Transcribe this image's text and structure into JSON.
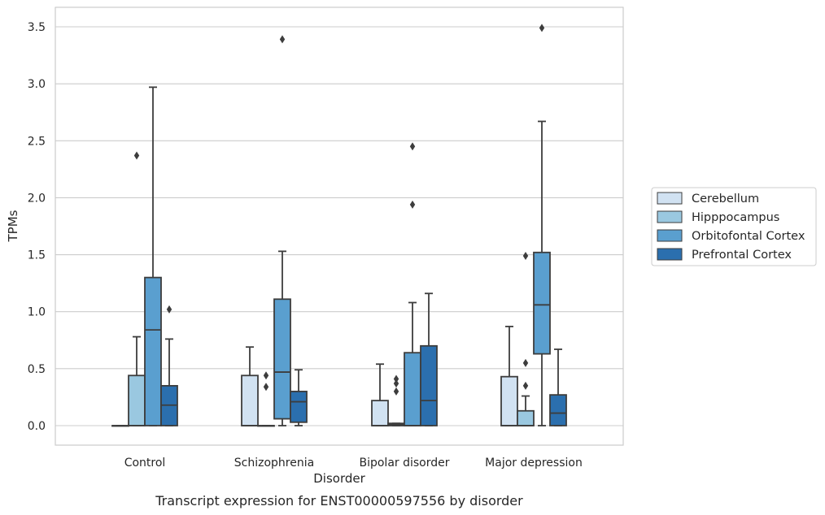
{
  "caption": "Transcript expression for ENST00000597556 by disorder",
  "chart_data": {
    "type": "box",
    "title": "",
    "xlabel": "Disorder",
    "ylabel": "TPMs",
    "ylim": [
      -0.17,
      3.67
    ],
    "yticks": [
      0.0,
      0.5,
      1.0,
      1.5,
      2.0,
      2.5,
      3.0,
      3.5
    ],
    "ytick_labels": [
      "0.0",
      "0.5",
      "1.0",
      "1.5",
      "2.0",
      "2.5",
      "3.0",
      "3.5"
    ],
    "grid": "horizontal",
    "legend_position": "right",
    "categories": [
      "Control",
      "Schizophrenia",
      "Bipolar disorder",
      "Major depression"
    ],
    "series": [
      {
        "name": "Cerebellum",
        "color": "#d1e2f2",
        "boxes": [
          {
            "whislo": 0.0,
            "q1": 0.0,
            "med": 0.0,
            "q3": 0.0,
            "whishi": 0.0,
            "fliers": []
          },
          {
            "whislo": 0.0,
            "q1": 0.0,
            "med": 0.0,
            "q3": 0.44,
            "whishi": 0.69,
            "fliers": []
          },
          {
            "whislo": 0.0,
            "q1": 0.0,
            "med": 0.0,
            "q3": 0.22,
            "whishi": 0.54,
            "fliers": []
          },
          {
            "whislo": 0.0,
            "q1": 0.0,
            "med": 0.0,
            "q3": 0.43,
            "whishi": 0.87,
            "fliers": []
          }
        ]
      },
      {
        "name": "Hipppocampus",
        "color": "#9ac8e0",
        "boxes": [
          {
            "whislo": 0.0,
            "q1": 0.0,
            "med": 0.0,
            "q3": 0.44,
            "whishi": 0.78,
            "fliers": [
              2.37
            ]
          },
          {
            "whislo": 0.0,
            "q1": 0.0,
            "med": 0.0,
            "q3": 0.0,
            "whishi": 0.0,
            "fliers": [
              0.34,
              0.44
            ]
          },
          {
            "whislo": 0.0,
            "q1": 0.0,
            "med": 0.01,
            "q3": 0.02,
            "whishi": 0.02,
            "fliers": [
              0.3,
              0.37,
              0.41
            ]
          },
          {
            "whislo": 0.0,
            "q1": 0.0,
            "med": 0.0,
            "q3": 0.13,
            "whishi": 0.26,
            "fliers": [
              0.35,
              0.55,
              1.49
            ]
          }
        ]
      },
      {
        "name": "Orbitofontal Cortex",
        "color": "#5a9fcf",
        "boxes": [
          {
            "whislo": 0.0,
            "q1": 0.0,
            "med": 0.84,
            "q3": 1.3,
            "whishi": 2.97,
            "fliers": []
          },
          {
            "whislo": 0.0,
            "q1": 0.06,
            "med": 0.47,
            "q3": 1.11,
            "whishi": 1.53,
            "fliers": [
              3.39
            ]
          },
          {
            "whislo": 0.0,
            "q1": 0.0,
            "med": 0.0,
            "q3": 0.64,
            "whishi": 1.08,
            "fliers": [
              1.94,
              2.45
            ]
          },
          {
            "whislo": 0.0,
            "q1": 0.63,
            "med": 1.06,
            "q3": 1.52,
            "whishi": 2.67,
            "fliers": [
              3.49
            ]
          }
        ]
      },
      {
        "name": "Prefrontal Cortex",
        "color": "#2b6fae",
        "boxes": [
          {
            "whislo": 0.0,
            "q1": 0.0,
            "med": 0.18,
            "q3": 0.35,
            "whishi": 0.76,
            "fliers": [
              1.02
            ]
          },
          {
            "whislo": 0.0,
            "q1": 0.03,
            "med": 0.21,
            "q3": 0.3,
            "whishi": 0.49,
            "fliers": []
          },
          {
            "whislo": 0.0,
            "q1": 0.0,
            "med": 0.22,
            "q3": 0.7,
            "whishi": 1.16,
            "fliers": []
          },
          {
            "whislo": 0.0,
            "q1": 0.0,
            "med": 0.11,
            "q3": 0.27,
            "whishi": 0.67,
            "fliers": []
          }
        ]
      }
    ]
  }
}
